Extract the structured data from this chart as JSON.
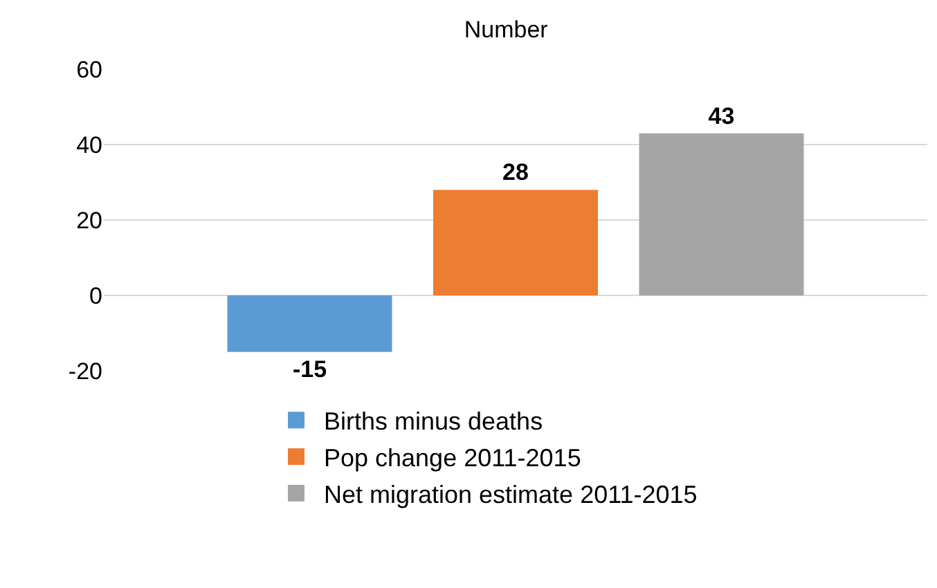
{
  "chart_data": {
    "type": "bar",
    "title": "Number",
    "categories": [
      null
    ],
    "series": [
      {
        "name": "Births minus deaths",
        "color": "#5b9bd5",
        "values": [
          -15
        ]
      },
      {
        "name": "Pop change 2011-2015",
        "color": "#ed7d31",
        "values": [
          28
        ]
      },
      {
        "name": "Net migration estimate 2011-2015",
        "color": "#a5a5a5",
        "values": [
          43
        ]
      }
    ],
    "ylim": [
      -20,
      60
    ],
    "yticks": [
      -20,
      0,
      20,
      40,
      60
    ],
    "grid": "y",
    "legend": "bottom",
    "data_labels": true
  }
}
